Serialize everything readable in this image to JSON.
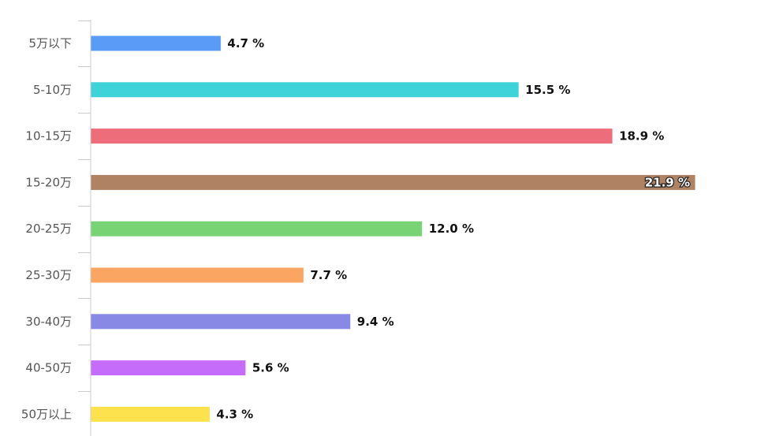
{
  "chart_data": {
    "type": "bar",
    "orientation": "horizontal",
    "categories": [
      "5万以下",
      "5-10万",
      "10-15万",
      "15-20万",
      "20-25万",
      "25-30万",
      "30-40万",
      "40-50万",
      "50万以上"
    ],
    "values": [
      4.7,
      15.5,
      18.9,
      21.9,
      12.0,
      7.7,
      9.4,
      5.6,
      4.3
    ],
    "value_labels": [
      "4.7 %",
      "15.5 %",
      "18.9 %",
      "21.9 %",
      "12.0 %",
      "7.7 %",
      "9.4 %",
      "5.6 %",
      "4.3 %"
    ],
    "colors": [
      "#5b9bf8",
      "#3dd3d8",
      "#ee6d7b",
      "#ae8262",
      "#78d374",
      "#fba562",
      "#8789e4",
      "#c66cfb",
      "#fde24e"
    ],
    "title": "",
    "xlabel": "",
    "ylabel": "",
    "xlim": [
      0,
      21.9
    ],
    "grid": false,
    "legend": "none"
  }
}
